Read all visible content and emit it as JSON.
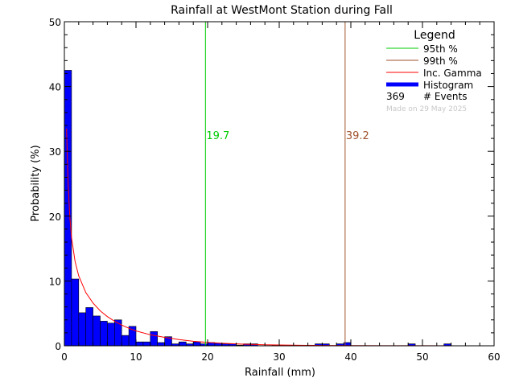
{
  "chart_data": {
    "type": "bar",
    "title": "Rainfall at WestMont Station during Fall",
    "xlabel": "Rainfall (mm)",
    "ylabel": "Probability (%)",
    "xlim": [
      0,
      60
    ],
    "ylim": [
      0,
      50
    ],
    "x_ticks": [
      "0",
      "10",
      "20",
      "30",
      "40",
      "50",
      "60"
    ],
    "y_ticks": [
      "0",
      "10",
      "20",
      "30",
      "40",
      "50"
    ],
    "bin_width": 1,
    "histogram": {
      "name": "Histogram",
      "color": "#0000ff",
      "x": [
        0,
        1,
        2,
        3,
        4,
        5,
        6,
        7,
        8,
        9,
        10,
        11,
        12,
        13,
        14,
        15,
        16,
        17,
        18,
        19,
        20,
        21,
        22,
        23,
        24,
        25,
        26,
        29,
        35,
        36,
        38,
        39,
        48,
        53
      ],
      "values": [
        42.5,
        10.3,
        5.1,
        5.9,
        4.6,
        3.8,
        3.5,
        4.0,
        1.6,
        3.0,
        0.6,
        0.6,
        2.2,
        0.5,
        1.4,
        0.3,
        0.6,
        0.3,
        0.6,
        0.3,
        0.5,
        0.4,
        0.3,
        0.3,
        0.1,
        0.3,
        0.3,
        0.1,
        0.3,
        0.3,
        0.3,
        0.5,
        0.3,
        0.3
      ]
    },
    "percentile_lines": [
      {
        "name": "95th %",
        "x": 19.7,
        "label": "19.7",
        "color": "#00cc00"
      },
      {
        "name": "99th %",
        "x": 39.2,
        "label": "39.2",
        "color": "#a0522d"
      }
    ],
    "gamma_curve": {
      "name": "Inc. Gamma",
      "color": "#ff0000",
      "x": [
        0.3,
        0.5,
        0.75,
        1,
        1.5,
        2,
        3,
        4,
        5,
        6,
        7,
        8,
        9,
        10,
        12,
        14,
        16,
        18,
        20,
        22,
        25,
        28,
        32,
        36,
        40,
        45,
        50,
        55,
        60
      ],
      "y": [
        33.5,
        25.5,
        20.0,
        16.7,
        13.0,
        10.8,
        8.2,
        6.6,
        5.4,
        4.5,
        3.8,
        3.2,
        2.7,
        2.3,
        1.7,
        1.3,
        0.95,
        0.7,
        0.52,
        0.38,
        0.25,
        0.16,
        0.09,
        0.05,
        0.03,
        0.015,
        0.008,
        0.004,
        0.002
      ]
    },
    "legend": {
      "title": "Legend",
      "position": "top-right",
      "events_count": "369",
      "events_label": "# Events",
      "made_on": "Made on 29 May 2025"
    }
  }
}
